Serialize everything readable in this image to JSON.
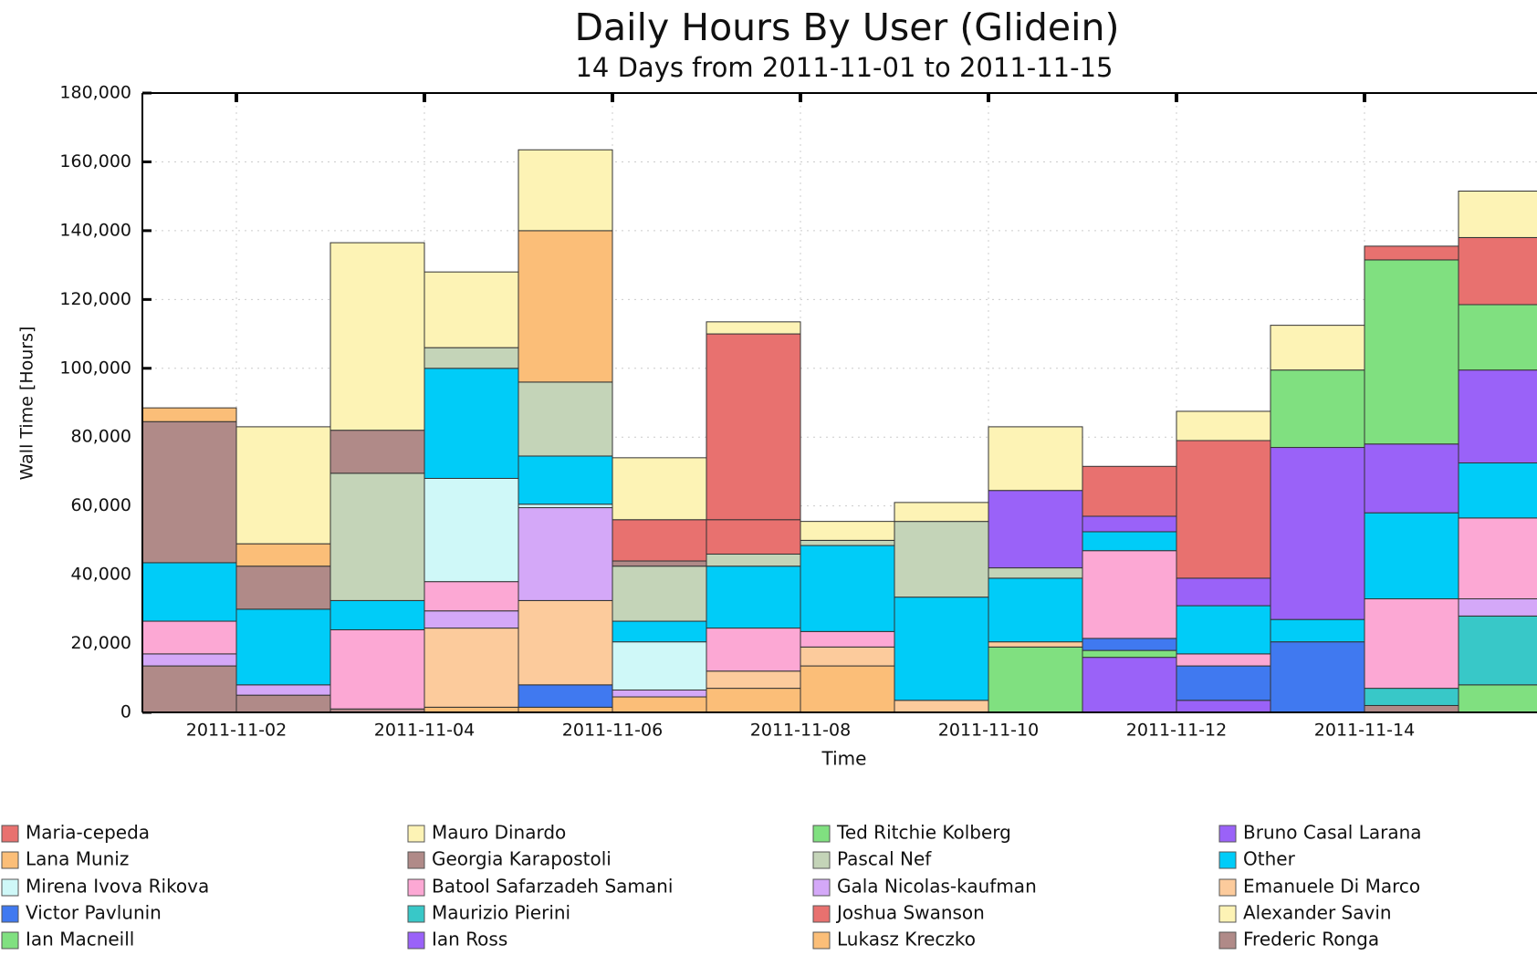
{
  "chart_data": {
    "type": "stacked_bar",
    "title": "Daily Hours By User (Glidein)",
    "subtitle": "14 Days from 2011-11-01 to 2011-11-15",
    "y_label": "Wall Time [Hours]",
    "x_label": "Time",
    "x": [
      "2011-11-01",
      "2011-11-02",
      "2011-11-03",
      "2011-11-04",
      "2011-11-05",
      "2011-11-06",
      "2011-11-07",
      "2011-11-08",
      "2011-11-09",
      "2011-11-10",
      "2011-11-11",
      "2011-11-12",
      "2011-11-13",
      "2011-11-14",
      "2011-11-15"
    ],
    "xlim": [
      "2011-11-01",
      "2011-11-16"
    ],
    "xticks": [
      "2011-11-02",
      "2011-11-04",
      "2011-11-06",
      "2011-11-08",
      "2011-11-10",
      "2011-11-12",
      "2011-11-14"
    ],
    "ylim": [
      0,
      180000
    ],
    "yticks": [
      0,
      {
        "value": 20000,
        "label": "20,000"
      },
      {
        "value": 40000,
        "label": "40,000"
      },
      {
        "value": 60000,
        "label": "60,000"
      },
      {
        "value": 80000,
        "label": "80,000"
      },
      {
        "value": 100000,
        "label": "100,000"
      },
      {
        "value": 120000,
        "label": "120,000"
      },
      {
        "value": 140000,
        "label": "140,000"
      },
      {
        "value": 160000,
        "label": "160,000"
      },
      {
        "value": 180000,
        "label": "180,000"
      }
    ],
    "grid": true,
    "legend": "bottom",
    "series": [
      {
        "name": "Maria-cepeda",
        "color": "#e8716f",
        "values": [
          null,
          null,
          null,
          null,
          null,
          12000,
          10000,
          null,
          null,
          null,
          14500,
          40000,
          null,
          4000,
          19500
        ]
      },
      {
        "name": "Lana Muniz",
        "color": "#fbbe78",
        "values": [
          null,
          null,
          null,
          1500,
          1500,
          4500,
          7000,
          13500,
          null,
          null,
          null,
          null,
          null,
          null,
          null
        ]
      },
      {
        "name": "Mirena Ivova Rikova",
        "color": "#cff8f8",
        "values": [
          null,
          null,
          null,
          30000,
          1000,
          14000,
          null,
          null,
          null,
          null,
          null,
          null,
          null,
          null,
          null
        ]
      },
      {
        "name": "Victor Pavlunin",
        "color": "#4079f0",
        "values": [
          null,
          null,
          null,
          null,
          6500,
          null,
          null,
          null,
          null,
          null,
          3500,
          10000,
          20500,
          null,
          null
        ]
      },
      {
        "name": "Ian Macneill",
        "color": "#80e080",
        "values": [
          null,
          null,
          null,
          null,
          null,
          null,
          null,
          null,
          null,
          19000,
          2000,
          null,
          null,
          null,
          8000
        ]
      },
      {
        "name": "Mauro Dinardo",
        "color": "#fdf3b5",
        "values": [
          null,
          34000,
          54500,
          22000,
          23500,
          18000,
          3500,
          5500,
          5500,
          null,
          null,
          null,
          null,
          null,
          13500
        ]
      },
      {
        "name": "Georgia Karapostoli",
        "color": "#b08a88",
        "values": [
          41000,
          12500,
          12500,
          null,
          null,
          1500,
          null,
          null,
          null,
          null,
          null,
          null,
          null,
          null,
          null
        ]
      },
      {
        "name": "Batool Safarzadeh Samani",
        "color": "#fca8d4",
        "values": [
          9500,
          null,
          23000,
          8500,
          null,
          null,
          12500,
          4500,
          null,
          null,
          25500,
          3500,
          null,
          26000,
          23500
        ]
      },
      {
        "name": "Maurizio Pierini",
        "color": "#38c8c8",
        "values": [
          null,
          null,
          null,
          null,
          null,
          null,
          null,
          null,
          null,
          null,
          null,
          null,
          null,
          5000,
          20000
        ]
      },
      {
        "name": "Ian Ross",
        "color": "#9a62f8",
        "values": [
          null,
          null,
          null,
          null,
          null,
          null,
          null,
          null,
          null,
          null,
          16000,
          3500,
          null,
          null,
          null
        ]
      },
      {
        "name": "Ted Ritchie Kolberg",
        "color": "#80e080",
        "values": [
          null,
          null,
          null,
          null,
          null,
          null,
          null,
          null,
          null,
          null,
          null,
          null,
          22500,
          53500,
          19000
        ]
      },
      {
        "name": "Pascal Nef",
        "color": "#c4d4b8",
        "values": [
          null,
          null,
          37000,
          6000,
          21500,
          16000,
          3500,
          1500,
          22000,
          3000,
          null,
          null,
          null,
          null,
          null
        ]
      },
      {
        "name": "Gala Nicolas-kaufman",
        "color": "#d4a8f8",
        "values": [
          3500,
          3000,
          null,
          5000,
          27000,
          2000,
          null,
          null,
          null,
          null,
          null,
          null,
          null,
          null,
          5000
        ]
      },
      {
        "name": "Joshua Swanson",
        "color": "#e8716f",
        "values": [
          null,
          null,
          null,
          null,
          null,
          null,
          54000,
          null,
          null,
          null,
          null,
          null,
          null,
          null,
          null
        ]
      },
      {
        "name": "Lukasz Kreczko",
        "color": "#fbbe78",
        "values": [
          4000,
          6500,
          null,
          null,
          44000,
          null,
          null,
          null,
          null,
          null,
          null,
          null,
          null,
          null,
          null
        ]
      },
      {
        "name": "Bruno Casal Larana",
        "color": "#9a62f8",
        "values": [
          null,
          null,
          null,
          null,
          null,
          null,
          null,
          null,
          null,
          22500,
          4500,
          8000,
          50000,
          20000,
          27000
        ]
      },
      {
        "name": "Other",
        "color": "#00ccf8",
        "values": [
          17000,
          22000,
          8500,
          32000,
          14000,
          6000,
          18000,
          25000,
          30000,
          18500,
          5500,
          14000,
          6500,
          25000,
          16000
        ]
      },
      {
        "name": "Emanuele Di Marco",
        "color": "#fccb9c",
        "values": [
          null,
          null,
          null,
          23000,
          24500,
          null,
          5000,
          5500,
          3500,
          1500,
          null,
          null,
          null,
          null,
          null
        ]
      },
      {
        "name": "Alexander Savin",
        "color": "#fdf3b5",
        "values": [
          null,
          null,
          null,
          null,
          null,
          null,
          null,
          null,
          null,
          18500,
          null,
          8500,
          13000,
          null,
          null
        ]
      },
      {
        "name": "Frederic Ronga",
        "color": "#b08a88",
        "values": [
          13500,
          5000,
          1000,
          null,
          null,
          null,
          null,
          null,
          null,
          null,
          null,
          null,
          null,
          2000,
          null
        ]
      }
    ]
  }
}
